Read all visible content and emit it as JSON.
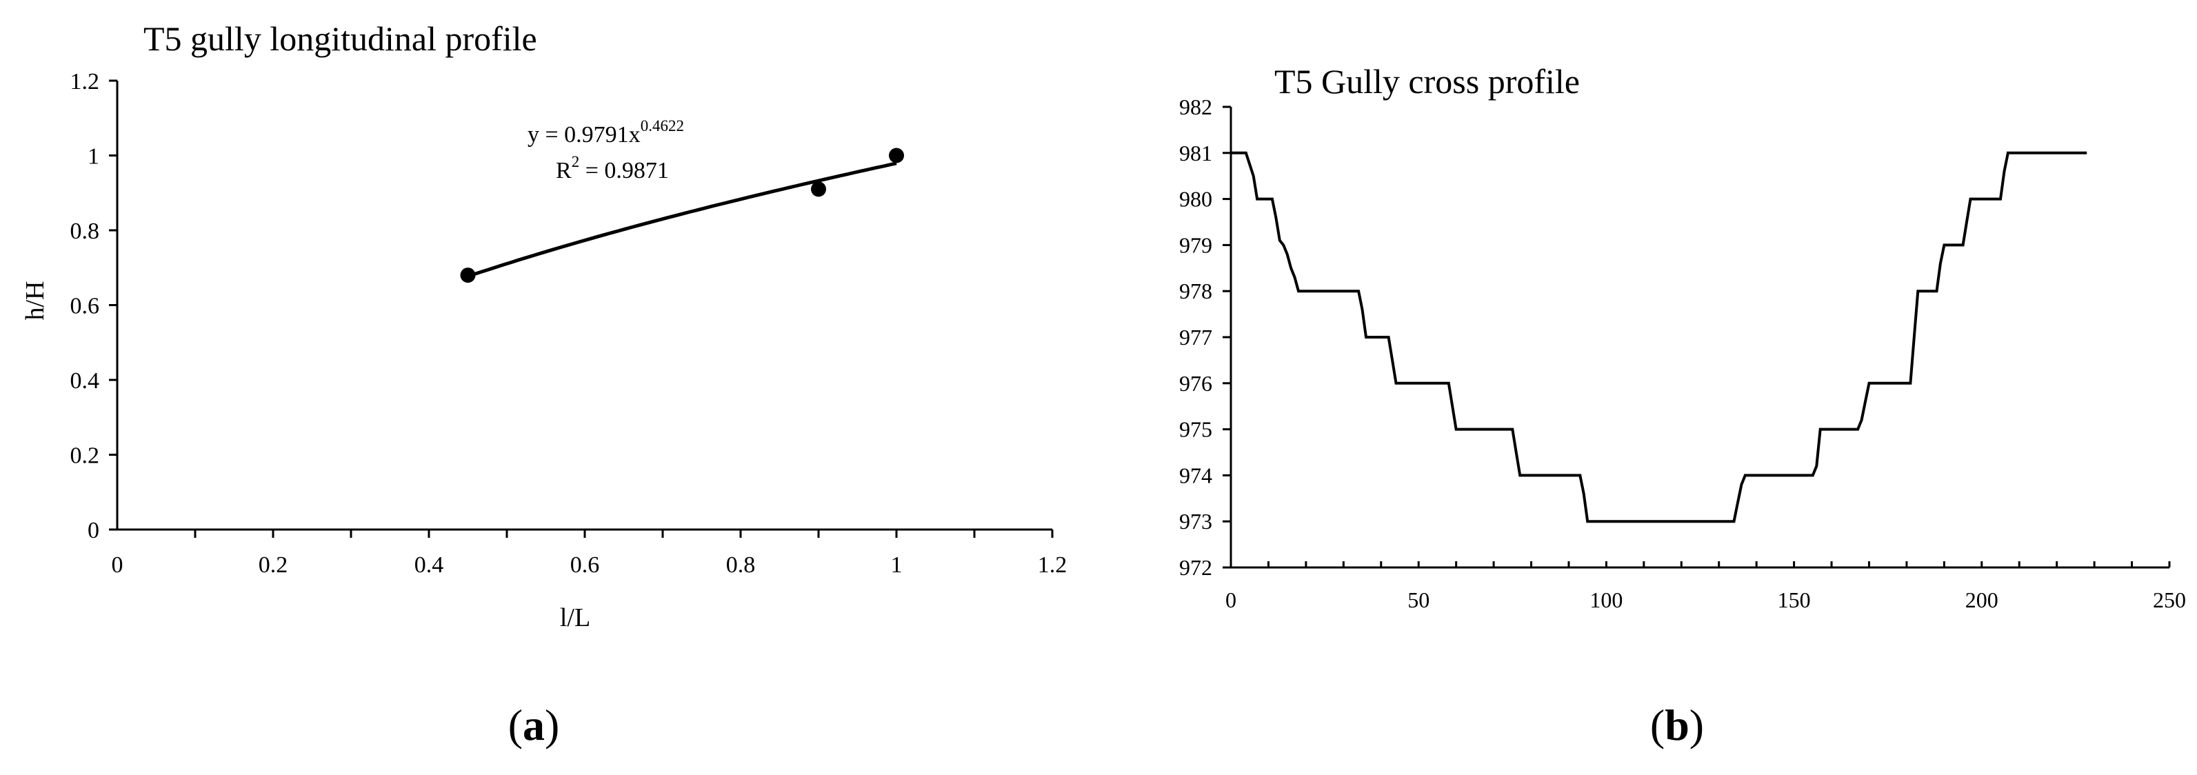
{
  "chart_data": [
    {
      "type": "scatter",
      "title": "T5 gully longitudinal profile",
      "xlabel": "l/L",
      "ylabel": "h/H",
      "xlim": [
        0,
        1.2
      ],
      "ylim": [
        0,
        1.2
      ],
      "xticks": [
        "0",
        "0.2",
        "0.4",
        "0.6",
        "0.8",
        "1",
        "1.2"
      ],
      "yticks": [
        "0",
        "0.2",
        "0.4",
        "0.6",
        "0.8",
        "1",
        "1.2"
      ],
      "points": [
        {
          "x": 0.45,
          "y": 0.68
        },
        {
          "x": 0.9,
          "y": 0.91
        },
        {
          "x": 1.0,
          "y": 1.0
        }
      ],
      "trendline": {
        "type": "power",
        "a": 0.9791,
        "b": 0.4622,
        "x_range": [
          0.45,
          1.0
        ]
      },
      "equation_text": {
        "base": "y = 0.9791x",
        "exponent": "0.4622"
      },
      "r2_text": {
        "prefix": "R",
        "sup": "2",
        "rest": " = 0.9871"
      },
      "grid": false,
      "legend": "none",
      "panel_label": {
        "open": "(",
        "letter": "a",
        "close": ")"
      }
    },
    {
      "type": "line",
      "title": "T5 Gully cross profile",
      "xlabel": "",
      "ylabel": "",
      "xlim": [
        0,
        250
      ],
      "ylim": [
        972,
        982
      ],
      "xticks": [
        "0",
        "50",
        "100",
        "150",
        "200",
        "250"
      ],
      "yticks": [
        "972",
        "973",
        "974",
        "975",
        "976",
        "977",
        "978",
        "979",
        "980",
        "981",
        "982"
      ],
      "points": [
        [
          0,
          981
        ],
        [
          4,
          981
        ],
        [
          6,
          980.5
        ],
        [
          7,
          980
        ],
        [
          11,
          980
        ],
        [
          12,
          979.6
        ],
        [
          13,
          979.1
        ],
        [
          14,
          979
        ],
        [
          15,
          978.8
        ],
        [
          16,
          978.5
        ],
        [
          17,
          978.3
        ],
        [
          18,
          978
        ],
        [
          34,
          978
        ],
        [
          35,
          977.6
        ],
        [
          36,
          977
        ],
        [
          42,
          977
        ],
        [
          43,
          976.5
        ],
        [
          44,
          976
        ],
        [
          58,
          976
        ],
        [
          59,
          975.5
        ],
        [
          60,
          975
        ],
        [
          71,
          975
        ],
        [
          75,
          975
        ],
        [
          76,
          974.5
        ],
        [
          77,
          974
        ],
        [
          93,
          974
        ],
        [
          94,
          973.6
        ],
        [
          95,
          973
        ],
        [
          134,
          973
        ],
        [
          135,
          973.4
        ],
        [
          136,
          973.8
        ],
        [
          137,
          974
        ],
        [
          155,
          974
        ],
        [
          156,
          974.2
        ],
        [
          157,
          975
        ],
        [
          167,
          975
        ],
        [
          168,
          975.2
        ],
        [
          169,
          975.6
        ],
        [
          170,
          976
        ],
        [
          181,
          976
        ],
        [
          182,
          977
        ],
        [
          183,
          978
        ],
        [
          188,
          978
        ],
        [
          189,
          978.6
        ],
        [
          190,
          979
        ],
        [
          195,
          979
        ],
        [
          196,
          979.5
        ],
        [
          197,
          980
        ],
        [
          205,
          980
        ],
        [
          206,
          980.6
        ],
        [
          207,
          981
        ],
        [
          228,
          981
        ]
      ],
      "grid": false,
      "legend": "none",
      "panel_label": {
        "open": "(",
        "letter": "b",
        "close": ")"
      }
    }
  ]
}
